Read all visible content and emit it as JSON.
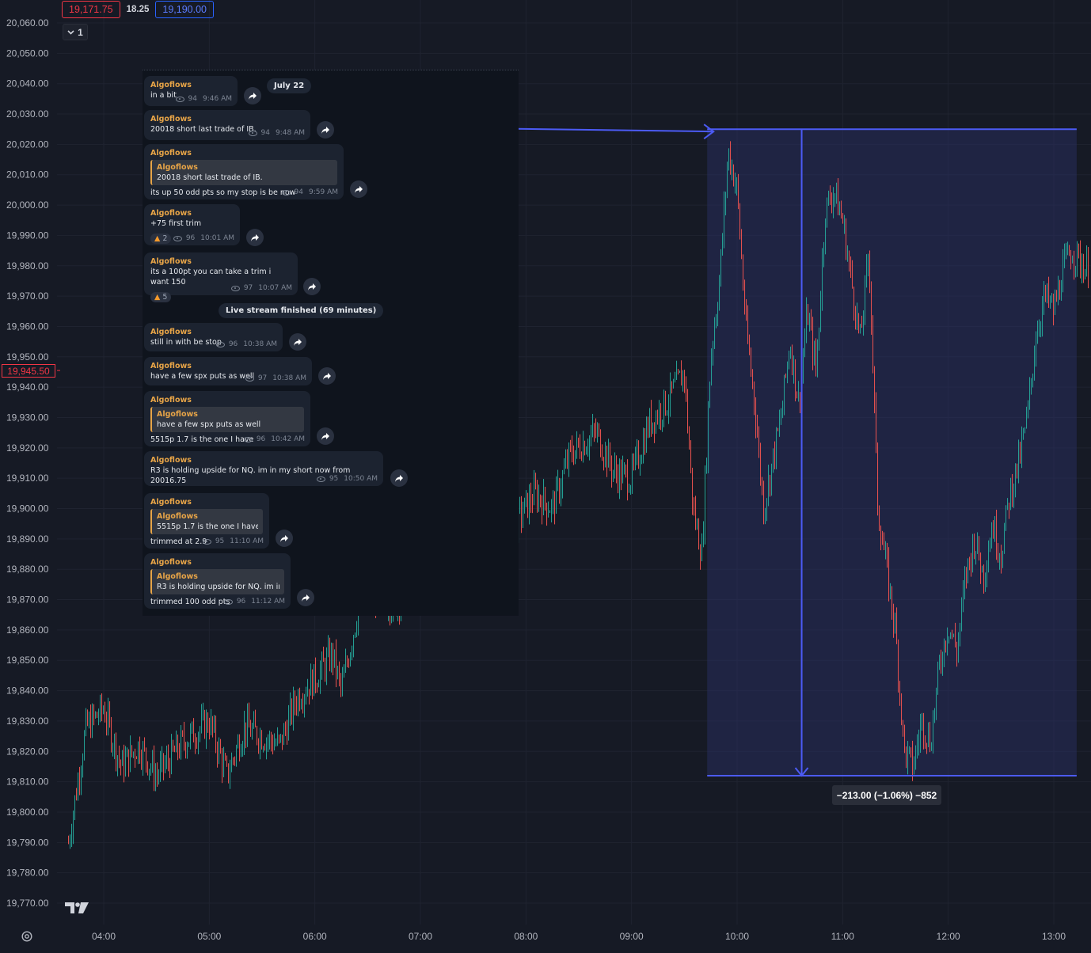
{
  "header": {
    "bid": "19,171.75",
    "spread": "18.25",
    "ask": "19,190.00",
    "collapse_label": "1"
  },
  "price_marker": "19,945.50",
  "measure_label": "−213.00 (−1.06%) −852",
  "colors": {
    "background": "#161a25",
    "up_candle": "#26a69a",
    "down_candle": "#ef5350",
    "measure_fill": "#2a3168",
    "measure_line": "#4c5bf5",
    "chat_bg": "#0f141d",
    "author": "#e7a447"
  },
  "icons": [
    "chevron-down-icon",
    "tradingview-logo",
    "settings-icon",
    "eye-icon",
    "forward-icon",
    "fire-icon"
  ],
  "chart_data": {
    "type": "candlestick",
    "title": "",
    "xlabel": "",
    "ylabel": "",
    "ylim": [
      19765,
      20065
    ],
    "xlim": [
      "03:40",
      "13:20"
    ],
    "y_ticks": [
      "20,060.00",
      "20,050.00",
      "20,040.00",
      "20,030.00",
      "20,020.00",
      "20,010.00",
      "20,000.00",
      "19,990.00",
      "19,980.00",
      "19,970.00",
      "19,960.00",
      "19,950.00",
      "19,940.00",
      "19,930.00",
      "19,920.00",
      "19,910.00",
      "19,900.00",
      "19,890.00",
      "19,880.00",
      "19,870.00",
      "19,860.00",
      "19,850.00",
      "19,840.00",
      "19,830.00",
      "19,820.00",
      "19,810.00",
      "19,800.00",
      "19,790.00",
      "19,780.00",
      "19,770.00"
    ],
    "x_ticks": [
      "04:00",
      "05:00",
      "06:00",
      "07:00",
      "08:00",
      "09:00",
      "10:00",
      "11:00",
      "12:00",
      "13:00"
    ],
    "grid": true,
    "price_path": [
      {
        "time": "03:40",
        "price": 19790
      },
      {
        "time": "03:50",
        "price": 19828
      },
      {
        "time": "04:00",
        "price": 19834
      },
      {
        "time": "04:10",
        "price": 19815
      },
      {
        "time": "04:20",
        "price": 19822
      },
      {
        "time": "04:30",
        "price": 19812
      },
      {
        "time": "04:45",
        "price": 19823
      },
      {
        "time": "05:00",
        "price": 19830
      },
      {
        "time": "05:10",
        "price": 19812
      },
      {
        "time": "05:20",
        "price": 19828
      },
      {
        "time": "05:40",
        "price": 19822
      },
      {
        "time": "05:50",
        "price": 19838
      },
      {
        "time": "06:00",
        "price": 19844
      },
      {
        "time": "06:10",
        "price": 19852
      },
      {
        "time": "06:15",
        "price": 19840
      },
      {
        "time": "06:25",
        "price": 19868
      },
      {
        "time": "06:35",
        "price": 19872
      },
      {
        "time": "06:45",
        "price": 19868
      },
      {
        "time": "07:00",
        "price": 19880
      },
      {
        "time": "07:30",
        "price": 19886
      },
      {
        "time": "07:50",
        "price": 19892
      },
      {
        "time": "08:05",
        "price": 19905
      },
      {
        "time": "08:15",
        "price": 19900
      },
      {
        "time": "08:25",
        "price": 19918
      },
      {
        "time": "08:40",
        "price": 19925
      },
      {
        "time": "08:50",
        "price": 19912
      },
      {
        "time": "09:00",
        "price": 19910
      },
      {
        "time": "09:10",
        "price": 19928
      },
      {
        "time": "09:20",
        "price": 19935
      },
      {
        "time": "09:30",
        "price": 19945
      },
      {
        "time": "09:35",
        "price": 19900
      },
      {
        "time": "09:40",
        "price": 19885
      },
      {
        "time": "09:45",
        "price": 19950
      },
      {
        "time": "09:50",
        "price": 19975
      },
      {
        "time": "09:55",
        "price": 20018
      },
      {
        "time": "10:00",
        "price": 20005
      },
      {
        "time": "10:05",
        "price": 19960
      },
      {
        "time": "10:10",
        "price": 19935
      },
      {
        "time": "10:15",
        "price": 19900
      },
      {
        "time": "10:25",
        "price": 19930
      },
      {
        "time": "10:30",
        "price": 19955
      },
      {
        "time": "10:35",
        "price": 19935
      },
      {
        "time": "10:40",
        "price": 19965
      },
      {
        "time": "10:45",
        "price": 19945
      },
      {
        "time": "10:50",
        "price": 19998
      },
      {
        "time": "10:55",
        "price": 20005
      },
      {
        "time": "11:00",
        "price": 19995
      },
      {
        "time": "11:05",
        "price": 19975
      },
      {
        "time": "11:10",
        "price": 19955
      },
      {
        "time": "11:15",
        "price": 19985
      },
      {
        "time": "11:20",
        "price": 19900
      },
      {
        "time": "11:25",
        "price": 19880
      },
      {
        "time": "11:30",
        "price": 19860
      },
      {
        "time": "11:35",
        "price": 19820
      },
      {
        "time": "11:40",
        "price": 19815
      },
      {
        "time": "11:45",
        "price": 19830
      },
      {
        "time": "11:50",
        "price": 19823
      },
      {
        "time": "11:55",
        "price": 19848
      },
      {
        "time": "12:00",
        "price": 19862
      },
      {
        "time": "12:05",
        "price": 19853
      },
      {
        "time": "12:10",
        "price": 19878
      },
      {
        "time": "12:15",
        "price": 19890
      },
      {
        "time": "12:20",
        "price": 19878
      },
      {
        "time": "12:25",
        "price": 19895
      },
      {
        "time": "12:30",
        "price": 19885
      },
      {
        "time": "12:35",
        "price": 19905
      },
      {
        "time": "12:40",
        "price": 19915
      },
      {
        "time": "12:45",
        "price": 19930
      },
      {
        "time": "12:50",
        "price": 19958
      },
      {
        "time": "12:55",
        "price": 19970
      },
      {
        "time": "13:00",
        "price": 19965
      },
      {
        "time": "13:05",
        "price": 19978
      },
      {
        "time": "13:10",
        "price": 19985
      },
      {
        "time": "13:20",
        "price": 19978
      }
    ],
    "measure": {
      "time_start": "09:43",
      "time_end": "13:13",
      "price_high": 20025,
      "price_low": 19812,
      "change": "−213.00 (−1.06%) −852"
    },
    "price_line": 19945.5
  },
  "chat": {
    "partial_date": "July 22",
    "live_notice": "Live stream finished (69 minutes)",
    "messages": [
      {
        "author": "Algoflows",
        "text": "in a bit",
        "views": "94",
        "time": "9:46 AM"
      },
      {
        "author": "Algoflows",
        "text": "20018 short last trade of IB.",
        "views": "94",
        "time": "9:48 AM"
      },
      {
        "author": "Algoflows",
        "reply_author": "Algoflows",
        "reply_text": "20018 short last trade of IB.",
        "text": "its up 50 odd pts so my stop is be now",
        "views": "94",
        "time": "9:59 AM"
      },
      {
        "author": "Algoflows",
        "text": "+75 first trim",
        "reaction": "2",
        "views": "96",
        "time": "10:01 AM"
      },
      {
        "author": "Algoflows",
        "text": "its a 100pt you can take a trim i want 150",
        "reaction": "5",
        "views": "97",
        "time": "10:07 AM"
      },
      {
        "author": "Algoflows",
        "text": "still in with be stop",
        "views": "96",
        "time": "10:38 AM"
      },
      {
        "author": "Algoflows",
        "text": "have a few spx puts as well",
        "views": "97",
        "time": "10:38 AM"
      },
      {
        "author": "Algoflows",
        "reply_author": "Algoflows",
        "reply_text": "have a few spx puts as well",
        "text": "5515p 1.7 is the one I have",
        "views": "96",
        "time": "10:42 AM"
      },
      {
        "author": "Algoflows",
        "text": "R3 is holding upside for NQ. im in my short now from 20016.75",
        "views": "95",
        "time": "10:50 AM"
      },
      {
        "author": "Algoflows",
        "reply_author": "Algoflows",
        "reply_text": "5515p 1.7 is the one I have",
        "text": "trimmed at 2.9",
        "views": "95",
        "time": "11:10 AM"
      },
      {
        "author": "Algoflows",
        "reply_author": "Algoflows",
        "reply_text": "R3 is holding upside for NQ. im in ...",
        "text": "trimmed 100 odd pts",
        "views": "96",
        "time": "11:12 AM"
      }
    ]
  }
}
